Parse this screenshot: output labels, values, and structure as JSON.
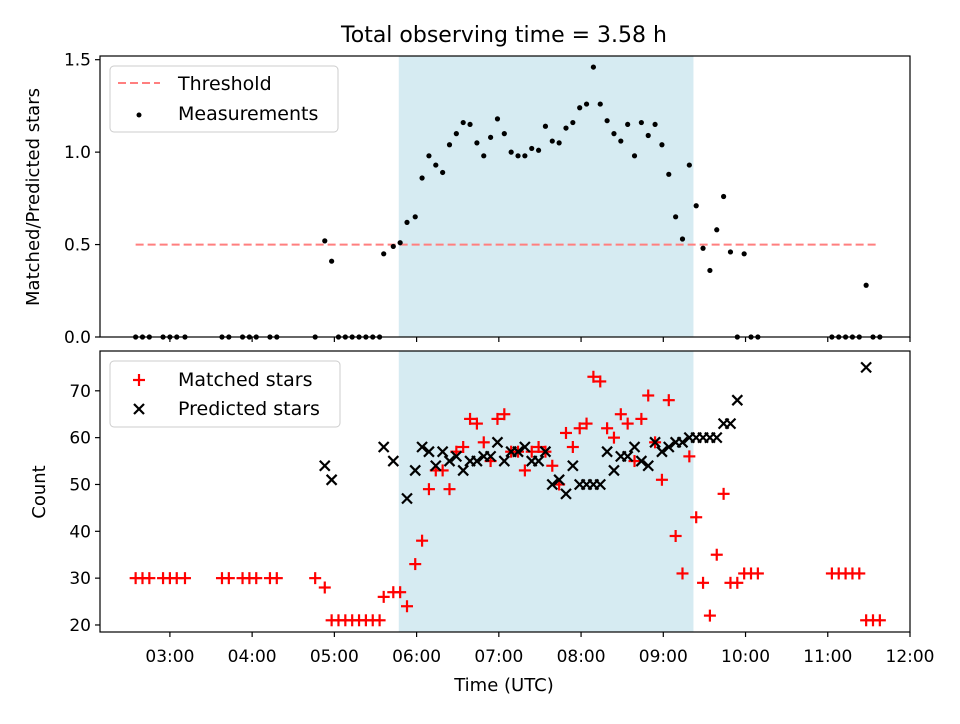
{
  "figure": {
    "title": "Total observing time = 3.58 h"
  },
  "chart_data": [
    {
      "type": "scatter",
      "ylabel": "Matched/Predicted stars",
      "xlabel": "",
      "xlim": [
        "02:09",
        "12:00"
      ],
      "ylim": [
        0,
        1.52
      ],
      "yticks": [
        0.0,
        0.5,
        1.0,
        1.5
      ],
      "ytick_labels": [
        "0.0",
        "0.5",
        "1.0",
        "1.5"
      ],
      "grid": false,
      "legend_position": "upper-left",
      "span": {
        "start": "05:47",
        "end": "09:22",
        "color": "#add8e6"
      },
      "threshold": {
        "name": "Threshold",
        "y": 0.5,
        "x_range": [
          "02:35",
          "11:35"
        ],
        "color": "#ff7f7f"
      },
      "series": [
        {
          "name": "Measurements",
          "marker": "dot",
          "color": "#000000",
          "points": [
            [
              "02:35",
              0
            ],
            [
              "02:40",
              0
            ],
            [
              "02:45",
              0
            ],
            [
              "02:55",
              0
            ],
            [
              "03:00",
              0
            ],
            [
              "03:05",
              0
            ],
            [
              "03:11",
              0
            ],
            [
              "03:38",
              0
            ],
            [
              "03:43",
              0
            ],
            [
              "03:53",
              0
            ],
            [
              "03:58",
              0
            ],
            [
              "04:03",
              0
            ],
            [
              "04:13",
              0
            ],
            [
              "04:18",
              0
            ],
            [
              "04:46",
              0
            ],
            [
              "04:53",
              0.52
            ],
            [
              "04:58",
              0.41
            ],
            [
              "05:03",
              0
            ],
            [
              "05:08",
              0
            ],
            [
              "05:13",
              0
            ],
            [
              "05:18",
              0
            ],
            [
              "05:23",
              0
            ],
            [
              "05:28",
              0
            ],
            [
              "05:33",
              0
            ],
            [
              "05:36",
              0.45
            ],
            [
              "05:43",
              0.49
            ],
            [
              "05:48",
              0.51
            ],
            [
              "05:53",
              0.62
            ],
            [
              "05:59",
              0.65
            ],
            [
              "06:04",
              0.86
            ],
            [
              "06:09",
              0.98
            ],
            [
              "06:14",
              0.93
            ],
            [
              "06:19",
              0.89
            ],
            [
              "06:24",
              1.04
            ],
            [
              "06:29",
              1.1
            ],
            [
              "06:34",
              1.16
            ],
            [
              "06:39",
              1.15
            ],
            [
              "06:44",
              1.05
            ],
            [
              "06:49",
              0.98
            ],
            [
              "06:54",
              1.08
            ],
            [
              "06:59",
              1.18
            ],
            [
              "07:04",
              1.1
            ],
            [
              "07:09",
              1.0
            ],
            [
              "07:14",
              0.98
            ],
            [
              "07:19",
              0.98
            ],
            [
              "07:24",
              1.02
            ],
            [
              "07:29",
              1.01
            ],
            [
              "07:34",
              1.14
            ],
            [
              "07:39",
              1.06
            ],
            [
              "07:44",
              1.05
            ],
            [
              "07:49",
              1.13
            ],
            [
              "07:54",
              1.16
            ],
            [
              "07:59",
              1.24
            ],
            [
              "08:04",
              1.26
            ],
            [
              "08:09",
              1.46
            ],
            [
              "08:14",
              1.26
            ],
            [
              "08:19",
              1.17
            ],
            [
              "08:24",
              1.1
            ],
            [
              "08:29",
              1.06
            ],
            [
              "08:34",
              1.15
            ],
            [
              "08:39",
              0.98
            ],
            [
              "08:44",
              1.16
            ],
            [
              "08:49",
              1.09
            ],
            [
              "08:54",
              1.15
            ],
            [
              "08:59",
              1.04
            ],
            [
              "09:04",
              0.88
            ],
            [
              "09:09",
              0.65
            ],
            [
              "09:14",
              0.53
            ],
            [
              "09:19",
              0.93
            ],
            [
              "09:24",
              0.71
            ],
            [
              "09:29",
              0.48
            ],
            [
              "09:34",
              0.36
            ],
            [
              "09:39",
              0.58
            ],
            [
              "09:44",
              0.76
            ],
            [
              "09:49",
              0.46
            ],
            [
              "09:54",
              0
            ],
            [
              "09:59",
              0.45
            ],
            [
              "10:04",
              0
            ],
            [
              "10:09",
              0
            ],
            [
              "11:03",
              0
            ],
            [
              "11:08",
              0
            ],
            [
              "11:13",
              0
            ],
            [
              "11:18",
              0
            ],
            [
              "11:23",
              0
            ],
            [
              "11:28",
              0.28
            ],
            [
              "11:33",
              0
            ],
            [
              "11:38",
              0
            ]
          ]
        }
      ]
    },
    {
      "type": "scatter",
      "ylabel": "Count",
      "xlabel": "Time (UTC)",
      "xlim": [
        "02:09",
        "12:00"
      ],
      "ylim": [
        18.5,
        78.5
      ],
      "yticks": [
        20,
        30,
        40,
        50,
        60,
        70
      ],
      "ytick_labels": [
        "20",
        "30",
        "40",
        "50",
        "60",
        "70"
      ],
      "xticks": [
        "03:00",
        "04:00",
        "05:00",
        "06:00",
        "07:00",
        "08:00",
        "09:00",
        "10:00",
        "11:00",
        "12:00"
      ],
      "xtick_labels": [
        "03:00",
        "04:00",
        "05:00",
        "06:00",
        "07:00",
        "08:00",
        "09:00",
        "10:00",
        "11:00",
        "12:00"
      ],
      "grid": false,
      "legend_position": "upper-left",
      "span": {
        "start": "05:47",
        "end": "09:22",
        "color": "#add8e6"
      },
      "series": [
        {
          "name": "Matched stars",
          "marker": "plus",
          "color": "#ff0000",
          "points": [
            [
              "02:35",
              30
            ],
            [
              "02:40",
              30
            ],
            [
              "02:45",
              30
            ],
            [
              "02:55",
              30
            ],
            [
              "03:00",
              30
            ],
            [
              "03:05",
              30
            ],
            [
              "03:11",
              30
            ],
            [
              "03:38",
              30
            ],
            [
              "03:43",
              30
            ],
            [
              "03:53",
              30
            ],
            [
              "03:58",
              30
            ],
            [
              "04:03",
              30
            ],
            [
              "04:13",
              30
            ],
            [
              "04:18",
              30
            ],
            [
              "04:46",
              30
            ],
            [
              "04:53",
              28
            ],
            [
              "04:58",
              21
            ],
            [
              "05:03",
              21
            ],
            [
              "05:08",
              21
            ],
            [
              "05:13",
              21
            ],
            [
              "05:18",
              21
            ],
            [
              "05:23",
              21
            ],
            [
              "05:28",
              21
            ],
            [
              "05:33",
              21
            ],
            [
              "05:36",
              26
            ],
            [
              "05:43",
              27
            ],
            [
              "05:48",
              27
            ],
            [
              "05:53",
              24
            ],
            [
              "05:59",
              33
            ],
            [
              "06:04",
              38
            ],
            [
              "06:09",
              49
            ],
            [
              "06:14",
              53
            ],
            [
              "06:19",
              53
            ],
            [
              "06:24",
              49
            ],
            [
              "06:29",
              57
            ],
            [
              "06:34",
              58
            ],
            [
              "06:39",
              64
            ],
            [
              "06:44",
              63
            ],
            [
              "06:49",
              59
            ],
            [
              "06:54",
              55
            ],
            [
              "06:59",
              64
            ],
            [
              "07:04",
              65
            ],
            [
              "07:09",
              57
            ],
            [
              "07:14",
              57
            ],
            [
              "07:19",
              53
            ],
            [
              "07:24",
              57
            ],
            [
              "07:29",
              58
            ],
            [
              "07:34",
              57
            ],
            [
              "07:39",
              54
            ],
            [
              "07:44",
              50
            ],
            [
              "07:49",
              61
            ],
            [
              "07:54",
              58
            ],
            [
              "07:59",
              62
            ],
            [
              "08:04",
              63
            ],
            [
              "08:09",
              73
            ],
            [
              "08:14",
              72
            ],
            [
              "08:19",
              62
            ],
            [
              "08:24",
              60
            ],
            [
              "08:29",
              65
            ],
            [
              "08:34",
              63
            ],
            [
              "08:39",
              55
            ],
            [
              "08:44",
              64
            ],
            [
              "08:49",
              69
            ],
            [
              "08:54",
              59
            ],
            [
              "08:59",
              51
            ],
            [
              "09:04",
              68
            ],
            [
              "09:09",
              39
            ],
            [
              "09:14",
              31
            ],
            [
              "09:19",
              56
            ],
            [
              "09:24",
              43
            ],
            [
              "09:29",
              29
            ],
            [
              "09:34",
              22
            ],
            [
              "09:39",
              35
            ],
            [
              "09:44",
              48
            ],
            [
              "09:49",
              29
            ],
            [
              "09:54",
              29
            ],
            [
              "09:59",
              31
            ],
            [
              "10:04",
              31
            ],
            [
              "10:09",
              31
            ],
            [
              "11:03",
              31
            ],
            [
              "11:08",
              31
            ],
            [
              "11:13",
              31
            ],
            [
              "11:18",
              31
            ],
            [
              "11:23",
              31
            ],
            [
              "11:28",
              21
            ],
            [
              "11:33",
              21
            ],
            [
              "11:38",
              21
            ]
          ]
        },
        {
          "name": "Predicted stars",
          "marker": "x",
          "color": "#000000",
          "points": [
            [
              "04:53",
              54
            ],
            [
              "04:58",
              51
            ],
            [
              "05:36",
              58
            ],
            [
              "05:43",
              55
            ],
            [
              "05:53",
              47
            ],
            [
              "05:59",
              53
            ],
            [
              "06:04",
              58
            ],
            [
              "06:09",
              57
            ],
            [
              "06:14",
              54
            ],
            [
              "06:19",
              57
            ],
            [
              "06:24",
              55
            ],
            [
              "06:29",
              56
            ],
            [
              "06:34",
              53
            ],
            [
              "06:39",
              55
            ],
            [
              "06:44",
              55
            ],
            [
              "06:49",
              56
            ],
            [
              "06:54",
              56
            ],
            [
              "06:59",
              59
            ],
            [
              "07:04",
              55
            ],
            [
              "07:09",
              57
            ],
            [
              "07:14",
              57
            ],
            [
              "07:19",
              58
            ],
            [
              "07:24",
              55
            ],
            [
              "07:29",
              55
            ],
            [
              "07:34",
              57
            ],
            [
              "07:39",
              50
            ],
            [
              "07:44",
              51
            ],
            [
              "07:49",
              48
            ],
            [
              "07:54",
              54
            ],
            [
              "07:59",
              50
            ],
            [
              "08:04",
              50
            ],
            [
              "08:09",
              50
            ],
            [
              "08:14",
              50
            ],
            [
              "08:19",
              57
            ],
            [
              "08:24",
              53
            ],
            [
              "08:29",
              56
            ],
            [
              "08:34",
              56
            ],
            [
              "08:39",
              58
            ],
            [
              "08:44",
              55
            ],
            [
              "08:49",
              54
            ],
            [
              "08:54",
              59
            ],
            [
              "08:59",
              57
            ],
            [
              "09:04",
              58
            ],
            [
              "09:09",
              59
            ],
            [
              "09:14",
              59
            ],
            [
              "09:19",
              60
            ],
            [
              "09:24",
              60
            ],
            [
              "09:29",
              60
            ],
            [
              "09:34",
              60
            ],
            [
              "09:39",
              60
            ],
            [
              "09:44",
              63
            ],
            [
              "09:49",
              63
            ],
            [
              "09:54",
              68
            ],
            [
              "11:28",
              75
            ]
          ]
        }
      ]
    }
  ]
}
